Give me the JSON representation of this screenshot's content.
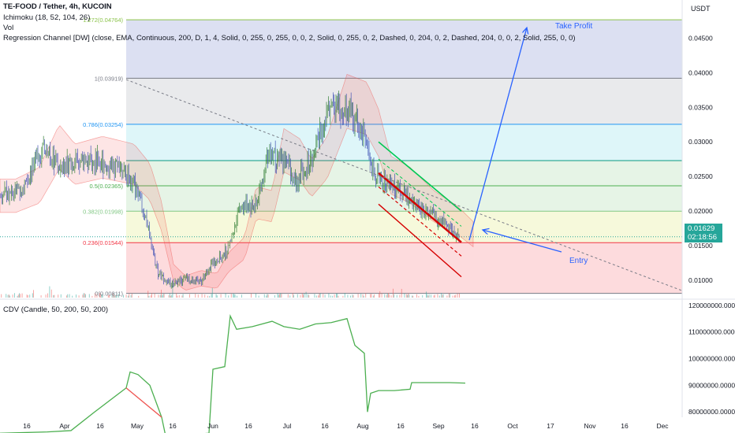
{
  "header": {
    "symbol": "TE-FOOD / Tether, 4h, KUCOIN",
    "indicator_1": "Ichimoku (18, 52, 104, 26)",
    "indicator_2": "Vol",
    "indicator_3": "Regression Channel [DW] (close, EMA, Continuous, 200, D, 1, 4, Solid, 0, 255, 0, 255, 0, 0, 2, Solid, 0, 255, 0, 2, Dashed, 0, 204, 0, 2, Dashed, 204, 0, 0, 2, Solid, 255, 0, 0)",
    "currency": "USDT"
  },
  "lower_pane": {
    "label": "CDV (Candle, 50, 200, 50, 200)"
  },
  "annotations": {
    "take_profit": "Take Profit",
    "entry": "Entry"
  },
  "price_badge": {
    "price": "0.01629",
    "countdown": "02:18:56",
    "color": "#26a69a"
  },
  "chart_data": [
    {
      "type": "candlestick",
      "pane": "price",
      "y_unit": "USDT",
      "ylim": [
        0.0075,
        0.0505
      ],
      "y_ticks": [
        0.01,
        0.015,
        0.02,
        0.025,
        0.03,
        0.035,
        0.04,
        0.045
      ],
      "y_tick_labels": [
        "0.01000",
        "0.01500",
        "0.02000",
        "0.02500",
        "0.03000",
        "0.03500",
        "0.04000",
        "0.04500"
      ],
      "x_tick_labels": [
        "16",
        "Apr",
        "16",
        "May",
        "16",
        "Jun",
        "16",
        "Jul",
        "16",
        "Aug",
        "16",
        "Sep",
        "16",
        "Oct",
        "17",
        "Nov",
        "16",
        "Dec"
      ],
      "fibonacci": [
        {
          "label": "0(0.00811)",
          "level": 0.00811,
          "color": "#787b86"
        },
        {
          "label": "0.236(0.01544)",
          "level": 0.01544,
          "color": "#f23645"
        },
        {
          "label": "0.382(0.01998)",
          "level": 0.01998,
          "color": "#81c784"
        },
        {
          "label": "0.5(0.02365)",
          "level": 0.02365,
          "color": "#4caf50"
        },
        {
          "label": "",
          "level": 0.0273,
          "color": "#089981"
        },
        {
          "label": "0.786(0.03254)",
          "level": 0.03254,
          "color": "#2196f3"
        },
        {
          "label": "1(0.03919)",
          "level": 0.03919,
          "color": "#787b86"
        },
        {
          "label": "1.272(0.04764)",
          "level": 0.04764,
          "color": "#8bc34a"
        }
      ],
      "current_price": 0.01629
    },
    {
      "type": "line",
      "pane": "cdv",
      "ylim": [
        78000000,
        122000000
      ],
      "y_ticks": [
        80000000,
        90000000,
        100000000,
        110000000,
        120000000
      ],
      "y_tick_labels": [
        "80000000.00000",
        "90000000.00000",
        "100000000.00000",
        "110000000.00000",
        "120000000.00000"
      ]
    }
  ]
}
